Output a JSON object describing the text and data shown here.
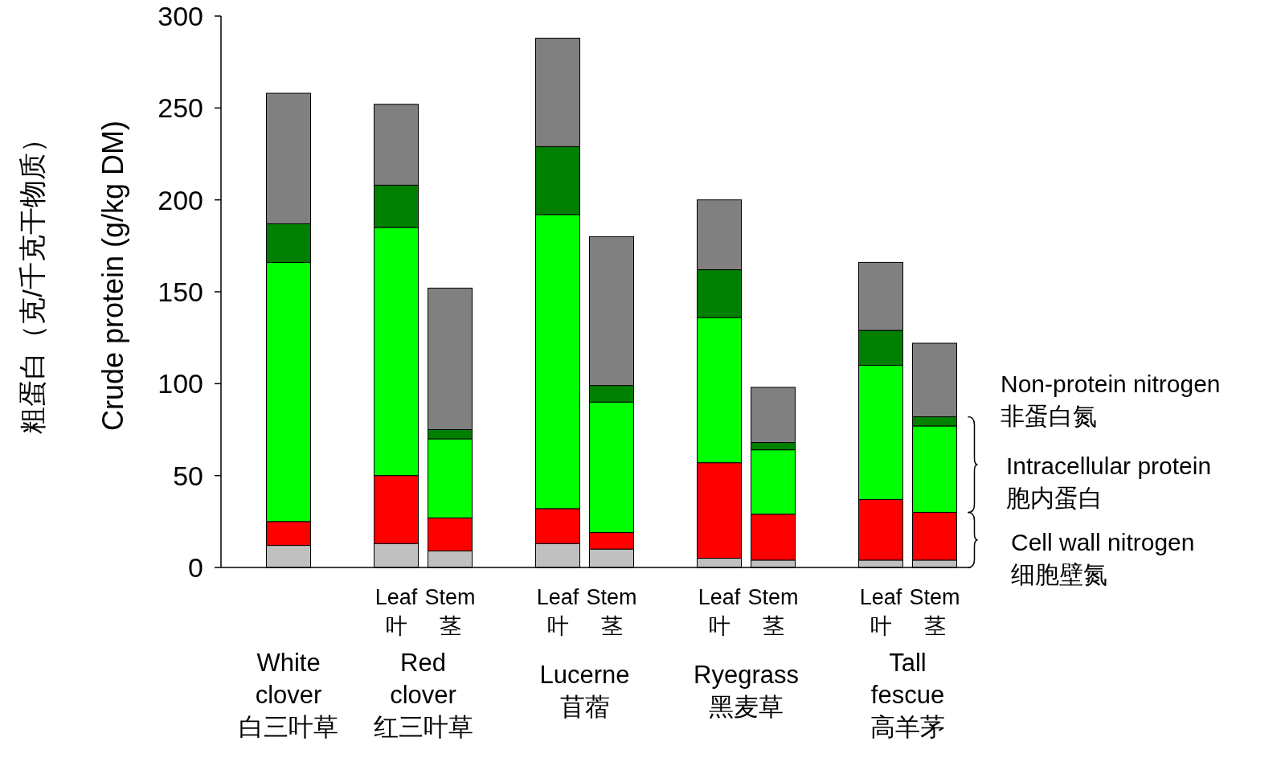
{
  "chart_data": {
    "type": "bar",
    "stacked": true,
    "ylabel": "Crude protein (g/kg DM)",
    "categories": [
      null,
      "Leaf\n叶",
      "Stem\n茎",
      "Leaf\n叶",
      "Stem\n茎",
      "Leaf\n叶",
      "Stem\n茎",
      "Leaf\n叶",
      "Stem\n茎"
    ],
    "series": [
      {
        "color": "#c0c0c0",
        "values": [
          12,
          13,
          9,
          13,
          10,
          5,
          4,
          4,
          4
        ]
      },
      {
        "color": "#ff0000",
        "values": [
          13,
          37,
          18,
          19,
          9,
          52,
          25,
          33,
          26
        ]
      },
      {
        "color": "#00ff00",
        "values": [
          141,
          135,
          43,
          160,
          71,
          79,
          35,
          73,
          47
        ]
      },
      {
        "color": "#008000",
        "values": [
          21,
          23,
          5,
          37,
          9,
          26,
          4,
          19,
          5
        ]
      },
      {
        "color": "#808080",
        "values": [
          71,
          44,
          77,
          59,
          81,
          38,
          30,
          37,
          40
        ]
      }
    ],
    "ylim": [
      0,
      300
    ],
    "yticks": [
      0,
      50,
      100,
      150,
      200,
      250,
      300
    ],
    "grid": false,
    "annotations": [
      "White\nclover\n白三叶草",
      "Red\nclover\n红三叶草",
      "Lucerne\n苜蓿",
      "Ryegrass\n黑麦草",
      "Tall\nfescue\n高羊茅",
      "Non-protein nitrogen\n非蛋白氮",
      "Intracellular protein\n胞内蛋白",
      "Cell wall nitrogen\n细胞壁氮",
      "粗蛋白（克/千克干物质）"
    ]
  }
}
